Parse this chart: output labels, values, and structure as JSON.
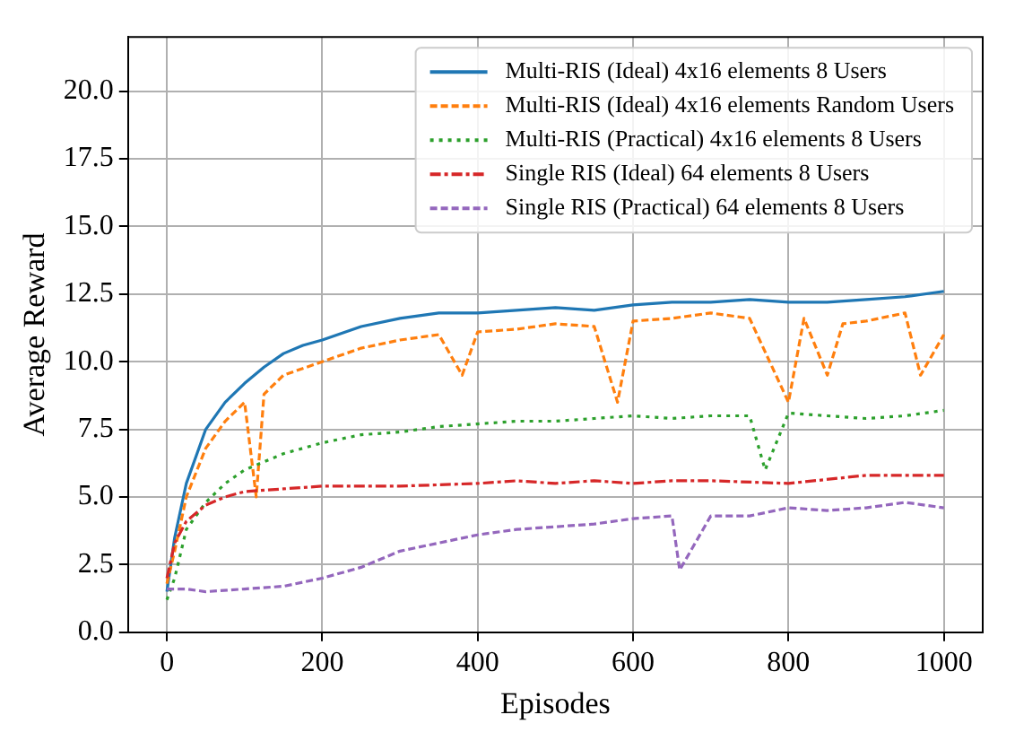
{
  "chart_data": {
    "type": "line",
    "xlabel": "Episodes",
    "ylabel": "Average Reward",
    "xlim": [
      -50,
      1050
    ],
    "ylim": [
      0,
      22
    ],
    "xticks": [
      0,
      200,
      400,
      600,
      800,
      1000
    ],
    "yticks": [
      {
        "value": 0,
        "label": "0.0"
      },
      {
        "value": 2.5,
        "label": "2.5"
      },
      {
        "value": 5,
        "label": "5.0"
      },
      {
        "value": 7.5,
        "label": "7.5"
      },
      {
        "value": 10,
        "label": "10.0"
      },
      {
        "value": 12.5,
        "label": "12.5"
      },
      {
        "value": 15,
        "label": "15.0"
      },
      {
        "value": 17.5,
        "label": "17.5"
      },
      {
        "value": 20,
        "label": "20.0"
      }
    ],
    "grid": true,
    "legend": "top right",
    "marker": "none",
    "series": [
      {
        "name": "Multi-RIS (Ideal) 4x16 elements 8 Users",
        "color": "#1f77b4",
        "line_style": "solid",
        "x": [
          0,
          10,
          25,
          50,
          75,
          100,
          125,
          150,
          175,
          200,
          250,
          300,
          350,
          400,
          450,
          500,
          550,
          600,
          650,
          700,
          750,
          800,
          850,
          900,
          950,
          1000
        ],
        "values": [
          1.5,
          3.5,
          5.5,
          7.5,
          8.5,
          9.2,
          9.8,
          10.3,
          10.6,
          10.8,
          11.3,
          11.6,
          11.8,
          11.8,
          11.9,
          12.0,
          11.9,
          12.1,
          12.2,
          12.2,
          12.3,
          12.2,
          12.2,
          12.3,
          12.4,
          12.6
        ]
      },
      {
        "name": "Multi-RIS (Ideal) 4x16 elements Random Users",
        "color": "#ff7f0e",
        "line_style": "dashed",
        "x": [
          0,
          10,
          25,
          50,
          75,
          100,
          115,
          125,
          150,
          200,
          250,
          300,
          350,
          380,
          400,
          450,
          500,
          550,
          580,
          600,
          650,
          700,
          750,
          800,
          820,
          850,
          870,
          900,
          950,
          970,
          1000
        ],
        "values": [
          1.8,
          3.0,
          5.0,
          6.8,
          7.8,
          8.5,
          5.0,
          8.8,
          9.5,
          10.0,
          10.5,
          10.8,
          11.0,
          9.5,
          11.1,
          11.2,
          11.4,
          11.3,
          8.5,
          11.5,
          11.6,
          11.8,
          11.6,
          8.5,
          11.6,
          9.5,
          11.4,
          11.5,
          11.8,
          9.5,
          11.0
        ]
      },
      {
        "name": "Multi-RIS (Practical) 4x16 elements 8 Users",
        "color": "#2ca02c",
        "line_style": "dotted",
        "x": [
          0,
          10,
          25,
          50,
          75,
          100,
          150,
          200,
          250,
          300,
          350,
          400,
          450,
          500,
          550,
          600,
          650,
          700,
          750,
          770,
          800,
          850,
          900,
          950,
          1000
        ],
        "values": [
          1.2,
          2.0,
          3.8,
          4.8,
          5.5,
          6.0,
          6.6,
          7.0,
          7.3,
          7.4,
          7.6,
          7.7,
          7.8,
          7.8,
          7.9,
          8.0,
          7.9,
          8.0,
          8.0,
          6.0,
          8.1,
          8.0,
          7.9,
          8.0,
          8.2
        ]
      },
      {
        "name": "Single RIS (Ideal) 64 elements 8 Users",
        "color": "#d62728",
        "line_style": "dashdot",
        "x": [
          0,
          10,
          25,
          50,
          75,
          100,
          150,
          200,
          300,
          400,
          450,
          500,
          550,
          600,
          650,
          700,
          800,
          900,
          1000
        ],
        "values": [
          2.0,
          3.3,
          4.1,
          4.7,
          5.0,
          5.2,
          5.3,
          5.4,
          5.4,
          5.5,
          5.6,
          5.5,
          5.6,
          5.5,
          5.6,
          5.6,
          5.5,
          5.8,
          5.8
        ]
      },
      {
        "name": "Single RIS (Practical) 64 elements 8 Users",
        "color": "#9467bd",
        "line_style": "dashed",
        "x": [
          0,
          25,
          50,
          100,
          150,
          200,
          250,
          300,
          350,
          400,
          450,
          500,
          550,
          600,
          650,
          660,
          700,
          750,
          800,
          850,
          900,
          950,
          1000
        ],
        "values": [
          1.6,
          1.6,
          1.5,
          1.6,
          1.7,
          2.0,
          2.4,
          3.0,
          3.3,
          3.6,
          3.8,
          3.9,
          4.0,
          4.2,
          4.3,
          2.3,
          4.3,
          4.3,
          4.6,
          4.5,
          4.6,
          4.8,
          4.6
        ]
      }
    ]
  }
}
